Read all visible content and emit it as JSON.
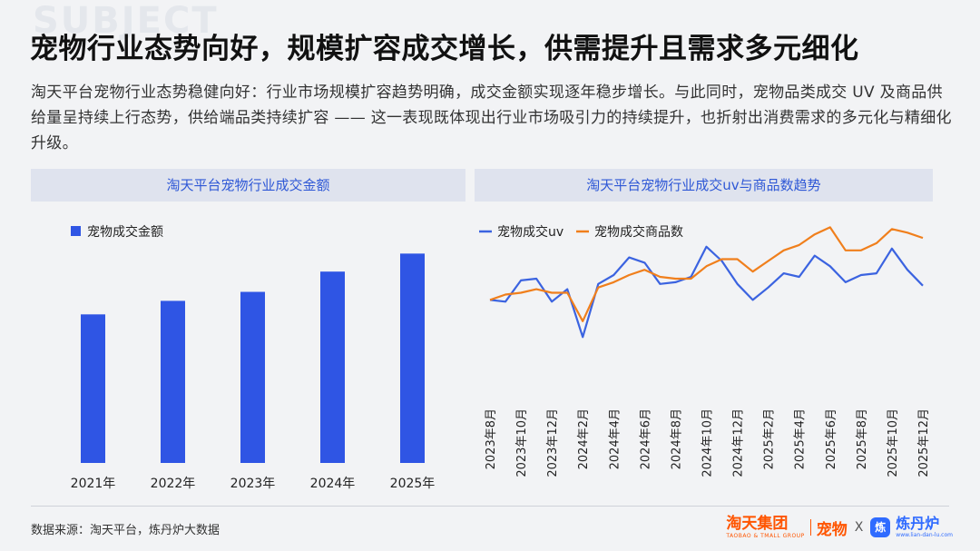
{
  "watermark": "SUBJECT",
  "headline": "宠物行业态势向好，规模扩容成交增长，供需提升且需求多元细化",
  "intro": "淘天平台宠物行业态势稳健向好：行业市场规模扩容趋势明确，成交金额实现逐年稳步增长。与此同时，宠物品类成交 UV 及商品供给量呈持续上行态势，供给端品类持续扩容 —— 这一表现既体现出行业市场吸引力的持续提升，也折射出消费需求的多元化与精细化升级。",
  "source": "数据来源：淘天平台，炼丹炉大数据",
  "brand": {
    "taobao": "淘天集团",
    "taobao_en": "TAOBAO & TMALL GROUP",
    "pet": "宠物",
    "x": "X",
    "ldl_logo": "炼",
    "ldl": "炼丹炉",
    "ldl_en": "www.lian-dan-lu.com"
  },
  "chart_data": [
    {
      "type": "bar",
      "title": "淘天平台宠物行业成交金额",
      "categories": [
        "2021年",
        "2022年",
        "2023年",
        "2024年",
        "2025年"
      ],
      "series": [
        {
          "name": "宠物成交金额",
          "values": [
            66,
            72,
            76,
            85,
            93
          ]
        }
      ],
      "ylim": [
        0,
        100
      ],
      "legend": "top-left",
      "grid": false,
      "colors": {
        "bar": "#2f55e4"
      }
    },
    {
      "type": "line",
      "title": "淘天平台宠物行业成交uv与商品数趋势",
      "x": [
        "2023年8月",
        "2023年9月",
        "2023年10月",
        "2023年11月",
        "2023年12月",
        "2024年1月",
        "2024年2月",
        "2024年3月",
        "2024年4月",
        "2024年5月",
        "2024年6月",
        "2024年7月",
        "2024年8月",
        "2024年9月",
        "2024年10月",
        "2024年11月",
        "2024年12月",
        "2025年1月",
        "2025年2月",
        "2025年3月",
        "2025年4月",
        "2025年5月",
        "2025年6月",
        "2025年7月",
        "2025年8月",
        "2025年9月",
        "2025年10月",
        "2025年11月",
        "2025年12月"
      ],
      "x_tick_labels": [
        "2023年8月",
        "2023年10月",
        "2023年12月",
        "2024年2月",
        "2024年4月",
        "2024年6月",
        "2024年8月",
        "2024年10月",
        "2024年12月",
        "2025年2月",
        "2025年4月",
        "2025年6月",
        "2025年8月",
        "2025年10月",
        "2025年12月"
      ],
      "series": [
        {
          "name": "宠物成交uv",
          "values": [
            47,
            46,
            58,
            59,
            46,
            53,
            26,
            56,
            61,
            71,
            68,
            56,
            57,
            60,
            77,
            69,
            56,
            47,
            54,
            62,
            60,
            72,
            66,
            57,
            61,
            62,
            76,
            64,
            55
          ]
        },
        {
          "name": "宠物成交商品数",
          "values": [
            47,
            50,
            51,
            53,
            51,
            51,
            35,
            54,
            57,
            61,
            64,
            60,
            59,
            59,
            66,
            70,
            70,
            63,
            69,
            75,
            78,
            84,
            88,
            75,
            75,
            79,
            87,
            85,
            82
          ]
        }
      ],
      "ylim": [
        0,
        100
      ],
      "legend": "top-left",
      "grid": false,
      "colors": {
        "uv": "#3b63e0",
        "items": "#f07f1c"
      }
    }
  ]
}
